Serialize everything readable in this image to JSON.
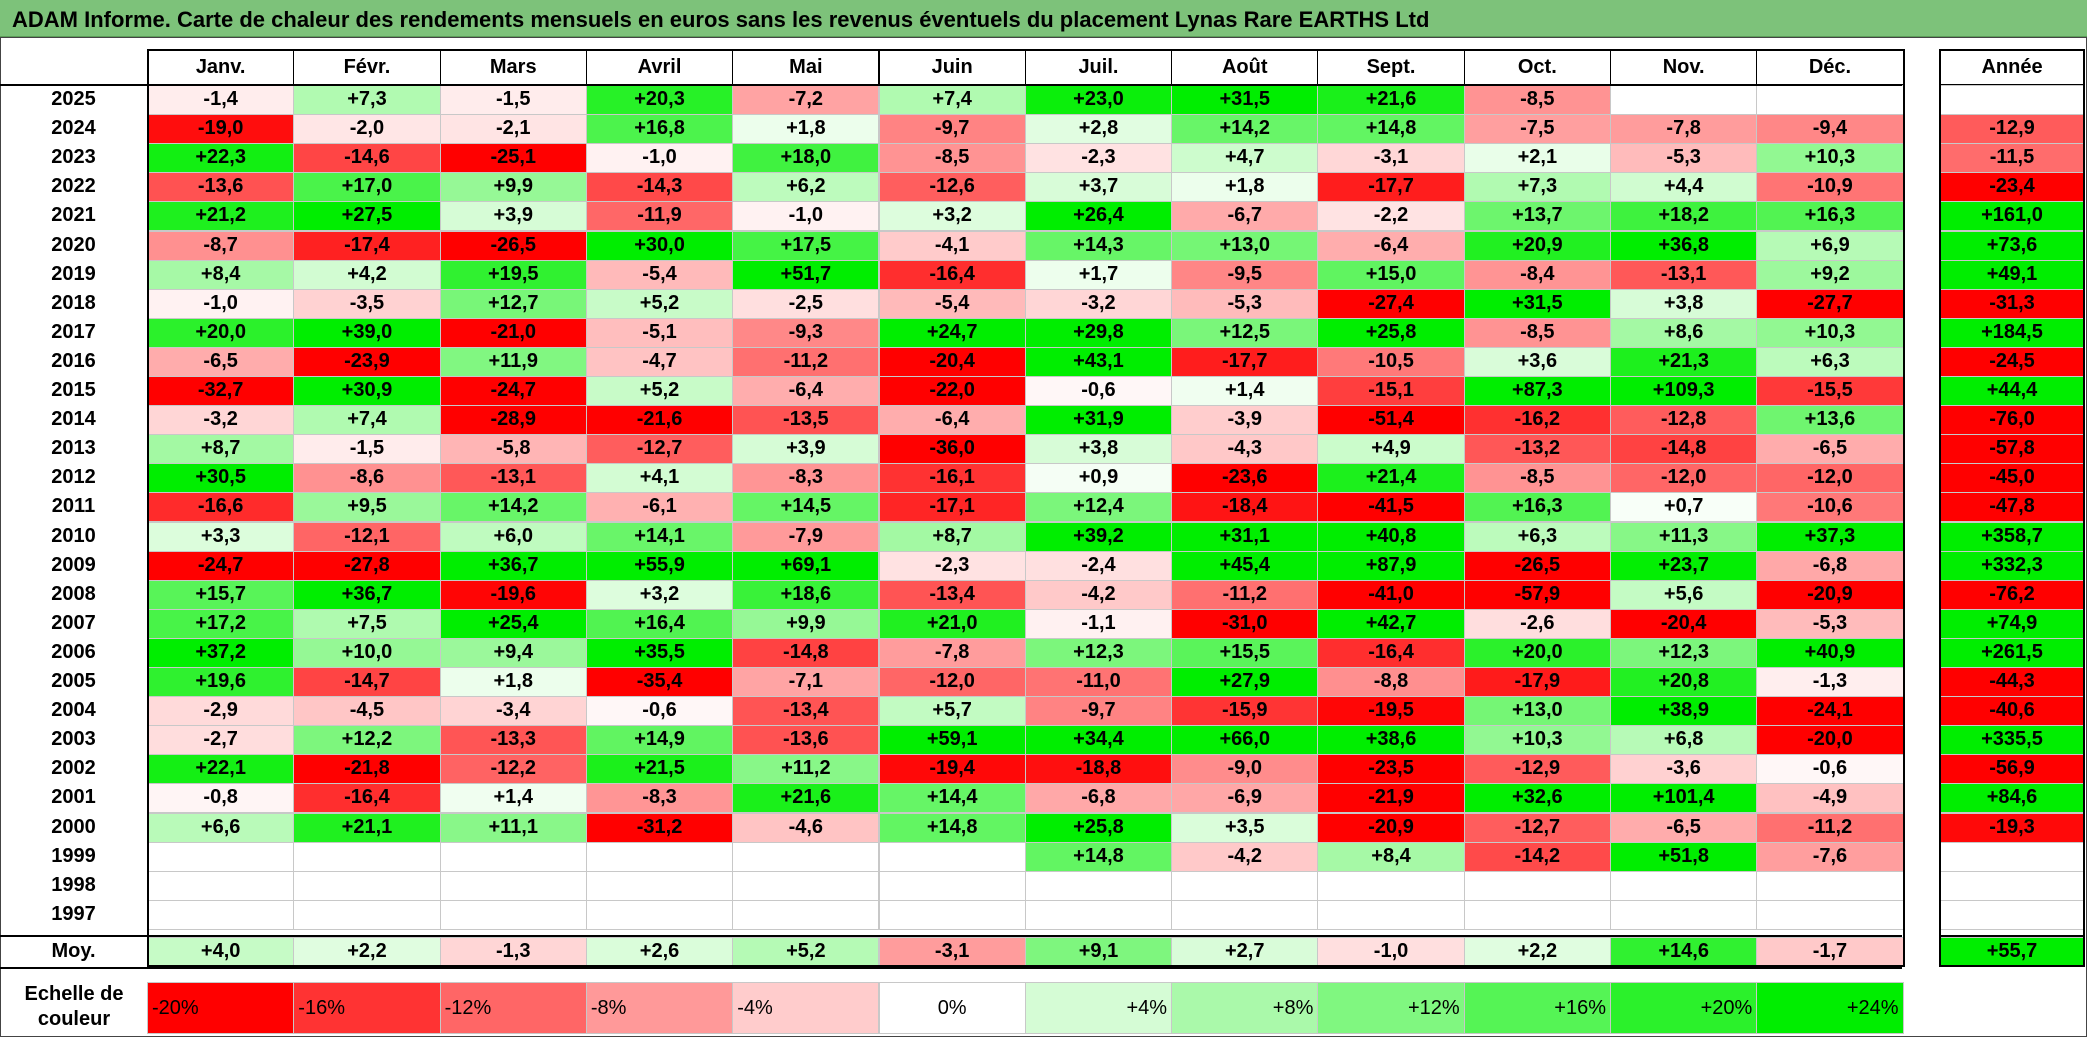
{
  "title": "ADAM Informe. Carte de chaleur des rendements mensuels en euros sans les revenus éventuels du placement Lynas Rare EARTHS Ltd",
  "colors": {
    "title_bg": "#7dc27a",
    "negative": "#ff0000",
    "positive": "#00ee00",
    "neutral": "#ffffff"
  },
  "chart_data": {
    "type": "heatmap",
    "title": "ADAM Informe. Carte de chaleur des rendements mensuels en euros sans les revenus éventuels du placement Lynas Rare EARTHS Ltd",
    "columns": [
      "Janv.",
      "Févr.",
      "Mars",
      "Avril",
      "Mai",
      "Juin",
      "Juil.",
      "Août",
      "Sept.",
      "Oct.",
      "Nov.",
      "Déc."
    ],
    "year_header": "Année",
    "rows": [
      {
        "year": "2025",
        "values": [
          "-1,4",
          "+7,3",
          "-1,5",
          "+20,3",
          "-7,2",
          "+7,4",
          "+23,0",
          "+31,5",
          "+21,6",
          "-8,5",
          "",
          ""
        ],
        "annual": ""
      },
      {
        "year": "2024",
        "values": [
          "-19,0",
          "-2,0",
          "-2,1",
          "+16,8",
          "+1,8",
          "-9,7",
          "+2,8",
          "+14,2",
          "+14,8",
          "-7,5",
          "-7,8",
          "-9,4"
        ],
        "annual": "-12,9"
      },
      {
        "year": "2023",
        "values": [
          "+22,3",
          "-14,6",
          "-25,1",
          "-1,0",
          "+18,0",
          "-8,5",
          "-2,3",
          "+4,7",
          "-3,1",
          "+2,1",
          "-5,3",
          "+10,3"
        ],
        "annual": "-11,5"
      },
      {
        "year": "2022",
        "values": [
          "-13,6",
          "+17,0",
          "+9,9",
          "-14,3",
          "+6,2",
          "-12,6",
          "+3,7",
          "+1,8",
          "-17,7",
          "+7,3",
          "+4,4",
          "-10,9"
        ],
        "annual": "-23,4"
      },
      {
        "year": "2021",
        "values": [
          "+21,2",
          "+27,5",
          "+3,9",
          "-11,9",
          "-1,0",
          "+3,2",
          "+26,4",
          "-6,7",
          "-2,2",
          "+13,7",
          "+18,2",
          "+16,3"
        ],
        "annual": "+161,0"
      },
      {
        "year": "2020",
        "values": [
          "-8,7",
          "-17,4",
          "-26,5",
          "+30,0",
          "+17,5",
          "-4,1",
          "+14,3",
          "+13,0",
          "-6,4",
          "+20,9",
          "+36,8",
          "+6,9"
        ],
        "annual": "+73,6"
      },
      {
        "year": "2019",
        "values": [
          "+8,4",
          "+4,2",
          "+19,5",
          "-5,4",
          "+51,7",
          "-16,4",
          "+1,7",
          "-9,5",
          "+15,0",
          "-8,4",
          "-13,1",
          "+9,2"
        ],
        "annual": "+49,1"
      },
      {
        "year": "2018",
        "values": [
          "-1,0",
          "-3,5",
          "+12,7",
          "+5,2",
          "-2,5",
          "-5,4",
          "-3,2",
          "-5,3",
          "-27,4",
          "+31,5",
          "+3,8",
          "-27,7"
        ],
        "annual": "-31,3"
      },
      {
        "year": "2017",
        "values": [
          "+20,0",
          "+39,0",
          "-21,0",
          "-5,1",
          "-9,3",
          "+24,7",
          "+29,8",
          "+12,5",
          "+25,8",
          "-8,5",
          "+8,6",
          "+10,3"
        ],
        "annual": "+184,5"
      },
      {
        "year": "2016",
        "values": [
          "-6,5",
          "-23,9",
          "+11,9",
          "-4,7",
          "-11,2",
          "-20,4",
          "+43,1",
          "-17,7",
          "-10,5",
          "+3,6",
          "+21,3",
          "+6,3"
        ],
        "annual": "-24,5"
      },
      {
        "year": "2015",
        "values": [
          "-32,7",
          "+30,9",
          "-24,7",
          "+5,2",
          "-6,4",
          "-22,0",
          "-0,6",
          "+1,4",
          "-15,1",
          "+87,3",
          "+109,3",
          "-15,5"
        ],
        "annual": "+44,4"
      },
      {
        "year": "2014",
        "values": [
          "-3,2",
          "+7,4",
          "-28,9",
          "-21,6",
          "-13,5",
          "-6,4",
          "+31,9",
          "-3,9",
          "-51,4",
          "-16,2",
          "-12,8",
          "+13,6"
        ],
        "annual": "-76,0"
      },
      {
        "year": "2013",
        "values": [
          "+8,7",
          "-1,5",
          "-5,8",
          "-12,7",
          "+3,9",
          "-36,0",
          "+3,8",
          "-4,3",
          "+4,9",
          "-13,2",
          "-14,8",
          "-6,5"
        ],
        "annual": "-57,8"
      },
      {
        "year": "2012",
        "values": [
          "+30,5",
          "-8,6",
          "-13,1",
          "+4,1",
          "-8,3",
          "-16,1",
          "+0,9",
          "-23,6",
          "+21,4",
          "-8,5",
          "-12,0",
          "-12,0"
        ],
        "annual": "-45,0"
      },
      {
        "year": "2011",
        "values": [
          "-16,6",
          "+9,5",
          "+14,2",
          "-6,1",
          "+14,5",
          "-17,1",
          "+12,4",
          "-18,4",
          "-41,5",
          "+16,3",
          "+0,7",
          "-10,6"
        ],
        "annual": "-47,8"
      },
      {
        "year": "2010",
        "values": [
          "+3,3",
          "-12,1",
          "+6,0",
          "+14,1",
          "-7,9",
          "+8,7",
          "+39,2",
          "+31,1",
          "+40,8",
          "+6,3",
          "+11,3",
          "+37,3"
        ],
        "annual": "+358,7"
      },
      {
        "year": "2009",
        "values": [
          "-24,7",
          "-27,8",
          "+36,7",
          "+55,9",
          "+69,1",
          "-2,3",
          "-2,4",
          "+45,4",
          "+87,9",
          "-26,5",
          "+23,7",
          "-6,8"
        ],
        "annual": "+332,3"
      },
      {
        "year": "2008",
        "values": [
          "+15,7",
          "+36,7",
          "-19,6",
          "+3,2",
          "+18,6",
          "-13,4",
          "-4,2",
          "-11,2",
          "-41,0",
          "-57,9",
          "+5,6",
          "-20,9"
        ],
        "annual": "-76,2"
      },
      {
        "year": "2007",
        "values": [
          "+17,2",
          "+7,5",
          "+25,4",
          "+16,4",
          "+9,9",
          "+21,0",
          "-1,1",
          "-31,0",
          "+42,7",
          "-2,6",
          "-20,4",
          "-5,3"
        ],
        "annual": "+74,9"
      },
      {
        "year": "2006",
        "values": [
          "+37,2",
          "+10,0",
          "+9,4",
          "+35,5",
          "-14,8",
          "-7,8",
          "+12,3",
          "+15,5",
          "-16,4",
          "+20,0",
          "+12,3",
          "+40,9"
        ],
        "annual": "+261,5"
      },
      {
        "year": "2005",
        "values": [
          "+19,6",
          "-14,7",
          "+1,8",
          "-35,4",
          "-7,1",
          "-12,0",
          "-11,0",
          "+27,9",
          "-8,8",
          "-17,9",
          "+20,8",
          "-1,3"
        ],
        "annual": "-44,3"
      },
      {
        "year": "2004",
        "values": [
          "-2,9",
          "-4,5",
          "-3,4",
          "-0,6",
          "-13,4",
          "+5,7",
          "-9,7",
          "-15,9",
          "-19,5",
          "+13,0",
          "+38,9",
          "-24,1"
        ],
        "annual": "-40,6"
      },
      {
        "year": "2003",
        "values": [
          "-2,7",
          "+12,2",
          "-13,3",
          "+14,9",
          "-13,6",
          "+59,1",
          "+34,4",
          "+66,0",
          "+38,6",
          "+10,3",
          "+6,8",
          "-20,0"
        ],
        "annual": "+335,5"
      },
      {
        "year": "2002",
        "values": [
          "+22,1",
          "-21,8",
          "-12,2",
          "+21,5",
          "+11,2",
          "-19,4",
          "-18,8",
          "-9,0",
          "-23,5",
          "-12,9",
          "-3,6",
          "-0,6"
        ],
        "annual": "-56,9"
      },
      {
        "year": "2001",
        "values": [
          "-0,8",
          "-16,4",
          "+1,4",
          "-8,3",
          "+21,6",
          "+14,4",
          "-6,8",
          "-6,9",
          "-21,9",
          "+32,6",
          "+101,4",
          "-4,9"
        ],
        "annual": "+84,6"
      },
      {
        "year": "2000",
        "values": [
          "+6,6",
          "+21,1",
          "+11,1",
          "-31,2",
          "-4,6",
          "+14,8",
          "+25,8",
          "+3,5",
          "-20,9",
          "-12,7",
          "-6,5",
          "-11,2"
        ],
        "annual": "-19,3"
      },
      {
        "year": "1999",
        "values": [
          "",
          "",
          "",
          "",
          "",
          "",
          "+14,8",
          "-4,2",
          "+8,4",
          "-14,2",
          "+51,8",
          "-7,6"
        ],
        "annual": ""
      },
      {
        "year": "1998",
        "values": [
          "",
          "",
          "",
          "",
          "",
          "",
          "",
          "",
          "",
          "",
          "",
          ""
        ],
        "annual": ""
      },
      {
        "year": "1997",
        "values": [
          "",
          "",
          "",
          "",
          "",
          "",
          "",
          "",
          "",
          "",
          "",
          ""
        ],
        "annual": ""
      }
    ],
    "average": {
      "label": "Moy.",
      "values": [
        "+4,0",
        "+2,2",
        "-1,3",
        "+2,6",
        "+5,2",
        "-3,1",
        "+9,1",
        "+2,7",
        "-1,0",
        "+2,2",
        "+14,6",
        "-1,7"
      ],
      "annual": "+55,7"
    },
    "scale": {
      "label": "Echelle de couleur",
      "steps": [
        "-20%",
        "-16%",
        "-12%",
        "-8%",
        "-4%",
        "0%",
        "+4%",
        "+8%",
        "+12%",
        "+16%",
        "+20%",
        "+24%"
      ]
    }
  }
}
